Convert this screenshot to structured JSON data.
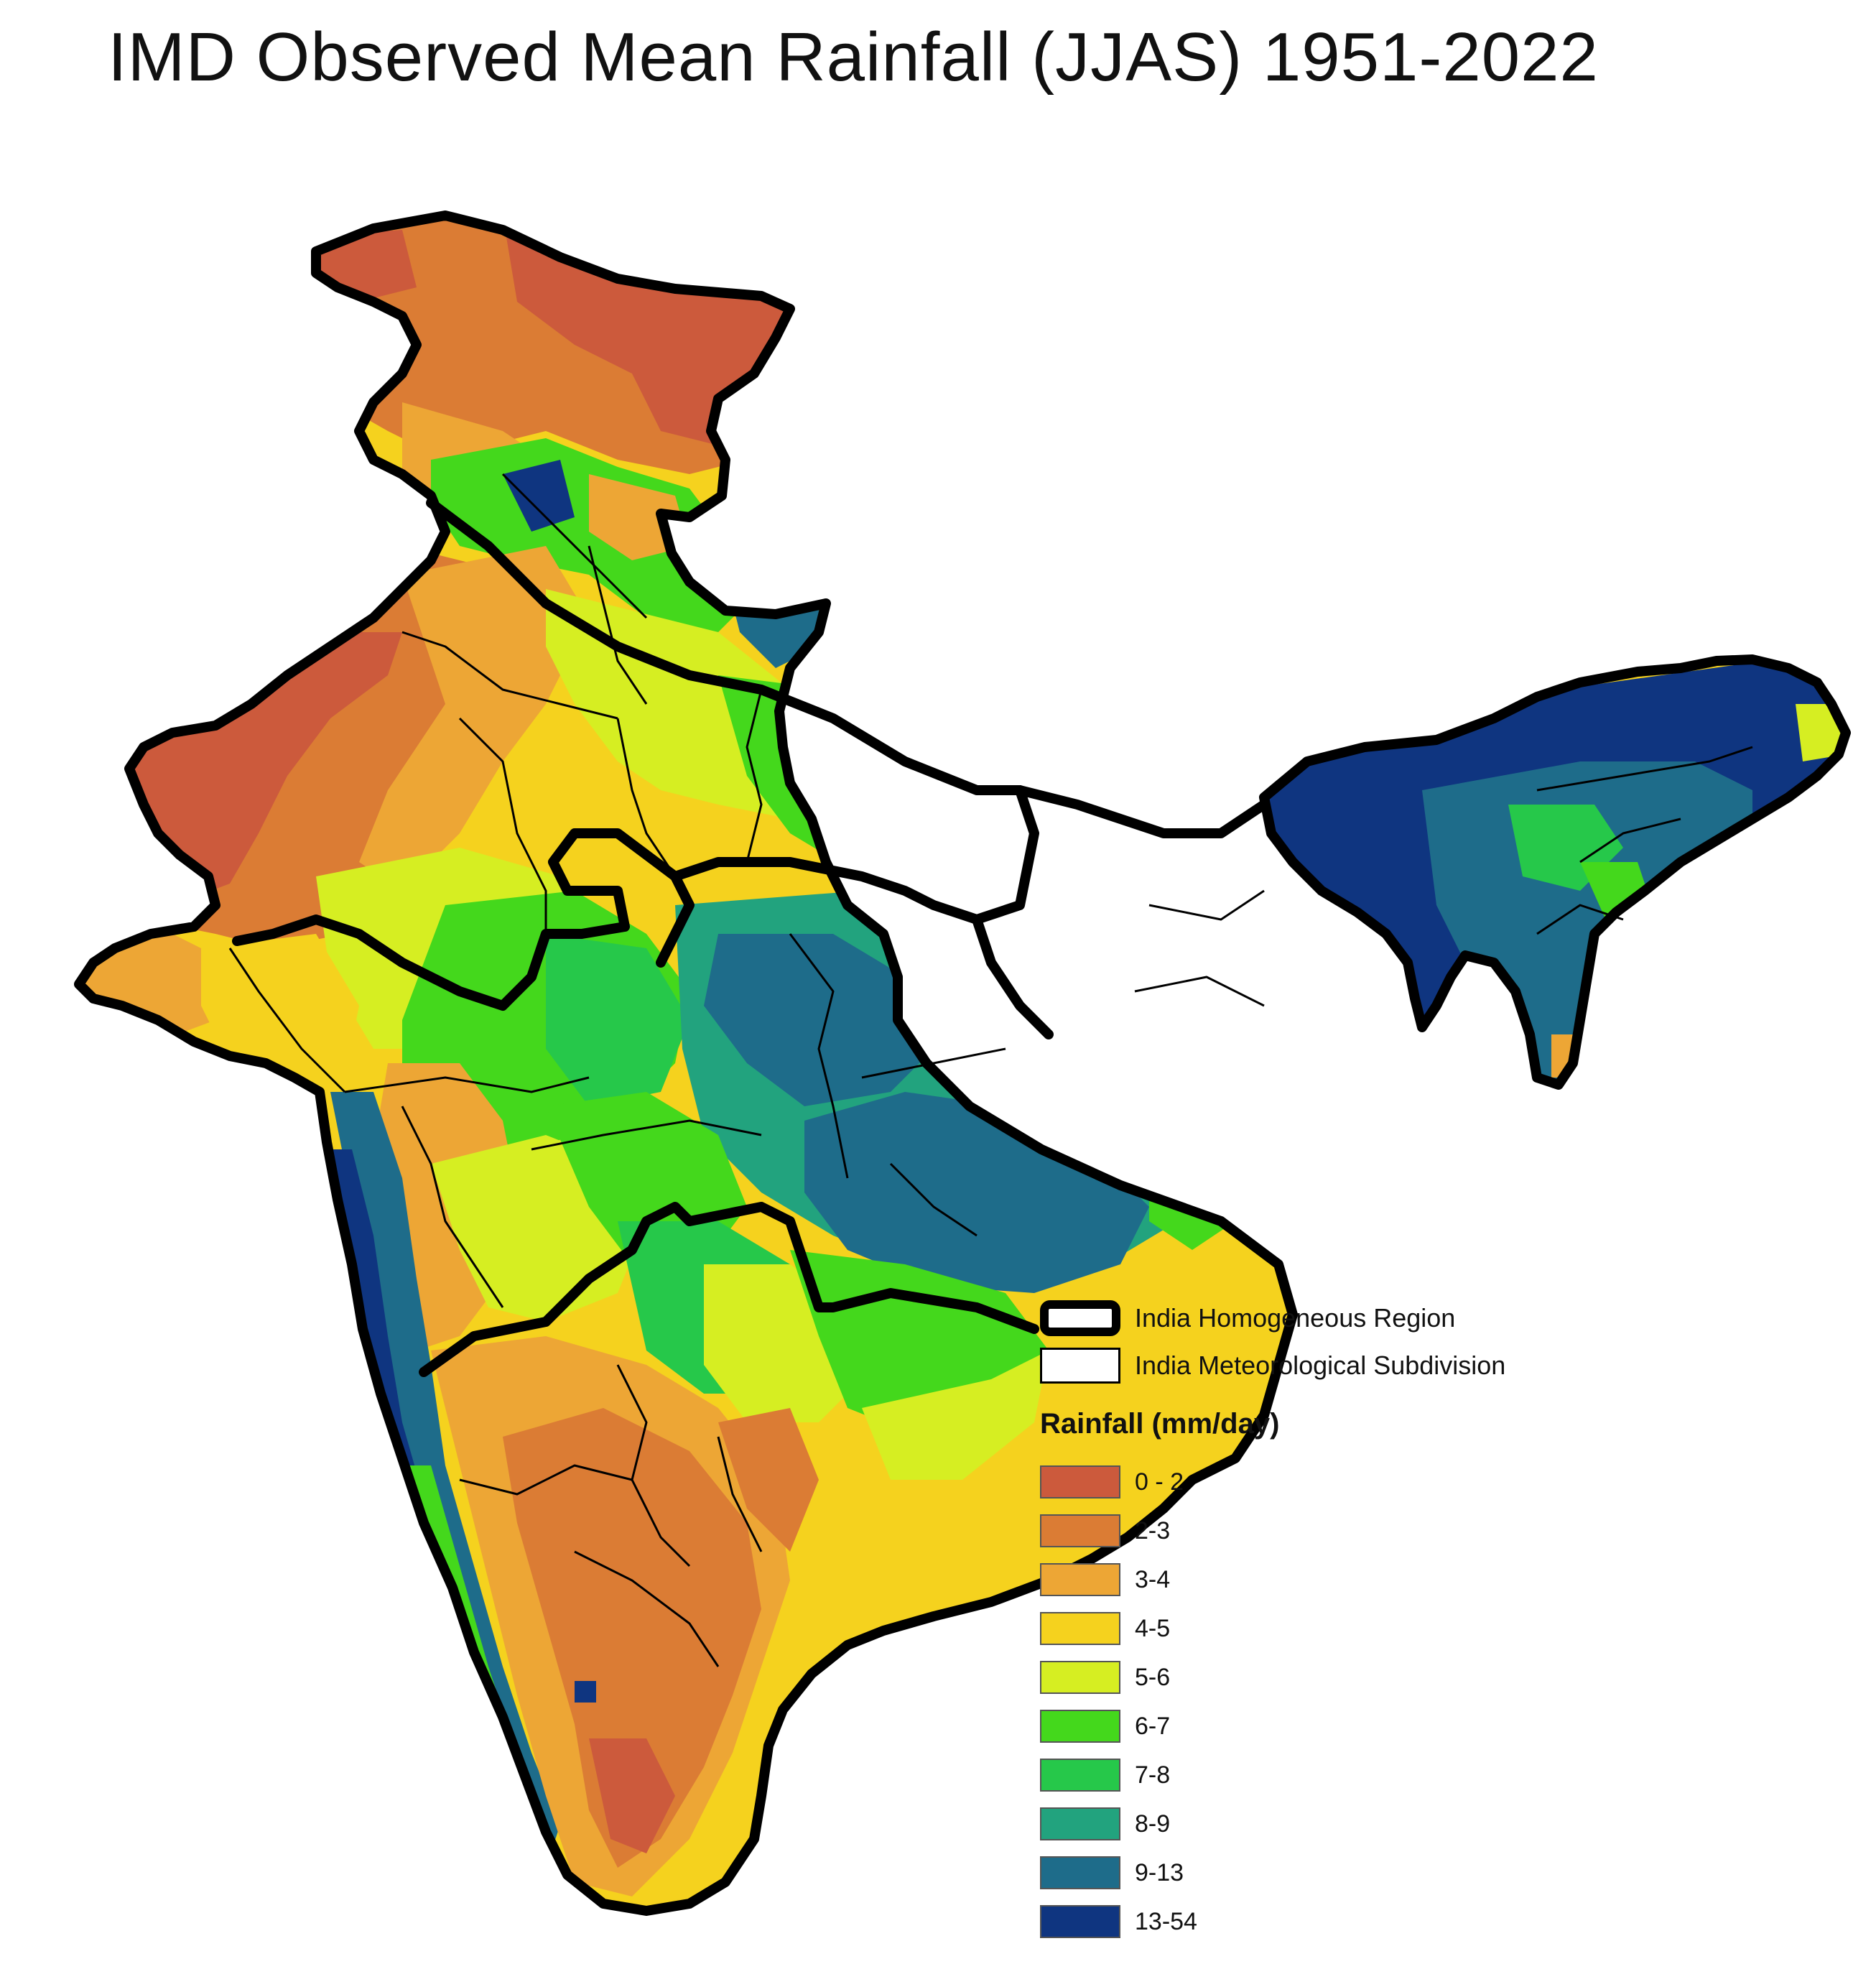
{
  "title": "IMD Observed Mean Rainfall (JJAS) 1951-2022",
  "legend": {
    "homogeneous_region_label": "India Homogeneous Region",
    "subdivision_label": "India Meteorological Subdivision",
    "rainfall_title": "Rainfall (mm/day)",
    "classes": [
      {
        "label": "0 - 2",
        "color": "#cc5a3c"
      },
      {
        "label": "2-3",
        "color": "#db7c34"
      },
      {
        "label": "3-4",
        "color": "#eda635"
      },
      {
        "label": "4-5",
        "color": "#f5d21e"
      },
      {
        "label": "5-6",
        "color": "#d6ee22"
      },
      {
        "label": "6-7",
        "color": "#44d81c"
      },
      {
        "label": "7-8",
        "color": "#26c84a"
      },
      {
        "label": "8-9",
        "color": "#22a37e"
      },
      {
        "label": "9-13",
        "color": "#1e6c8a"
      },
      {
        "label": "13-54",
        "color": "#0f3580"
      }
    ]
  },
  "colors": {
    "boundary": "#000000",
    "background": "#ffffff"
  }
}
